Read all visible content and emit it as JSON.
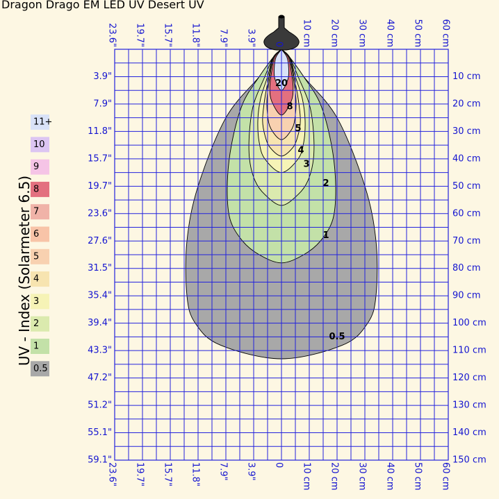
{
  "chart_data": {
    "type": "contour",
    "title": "Dragon Drago EM LED UV Desert UV",
    "ylabel": "UV - Index (Solarmeter 6.5)",
    "x_cm_range": [
      -60,
      60
    ],
    "y_cm_range": [
      0,
      150
    ],
    "grid": true,
    "top_tick_labels": [
      "23.6\"",
      "19.7\"",
      "15.7\"",
      "11.8\"",
      "7.9\"",
      "3.9\"",
      "0",
      "10 cm",
      "20 cm",
      "30 cm",
      "40 cm",
      "50 cm",
      "60 cm"
    ],
    "bottom_tick_labels": [
      "23.6\"",
      "19.7\"",
      "15.7\"",
      "11.8\"",
      "7.9\"",
      "3.9\"",
      "0",
      "10 cm",
      "20 cm",
      "30 cm",
      "40 cm",
      "50 cm",
      "60 cm"
    ],
    "left_tick_labels": [
      "3.9\"",
      "7.9\"",
      "11.8\"",
      "15.7\"",
      "19.7\"",
      "23.6\"",
      "27.6\"",
      "31.5\"",
      "35.4\"",
      "39.4\"",
      "43.3\"",
      "47.2\"",
      "51.2\"",
      "55.1\"",
      "59.1\""
    ],
    "right_tick_labels": [
      "10 cm",
      "20 cm",
      "30 cm",
      "40 cm",
      "50 cm",
      "60 cm",
      "70 cm",
      "80 cm",
      "90 cm",
      "100 cm",
      "110 cm",
      "120 cm",
      "130 cm",
      "140 cm",
      "150 cm"
    ],
    "legend": [
      {
        "label": "11+",
        "color": "#d9e2f7"
      },
      {
        "label": "10",
        "color": "#dcc5f2"
      },
      {
        "label": "9",
        "color": "#f5c4e6"
      },
      {
        "label": "8",
        "color": "#e3707f"
      },
      {
        "label": "7",
        "color": "#f0b3a8"
      },
      {
        "label": "6",
        "color": "#f8c4a8"
      },
      {
        "label": "5",
        "color": "#f8d1b0"
      },
      {
        "label": "4",
        "color": "#f7e4b0"
      },
      {
        "label": "3",
        "color": "#f6f3b6"
      },
      {
        "label": "2",
        "color": "#dbeaae"
      },
      {
        "label": "1",
        "color": "#c3e1a8"
      },
      {
        "label": "0.5",
        "color": "#a8a8a8"
      }
    ],
    "contours": [
      {
        "label": "0.5",
        "color": "#a8a8a8",
        "depth_cm": 113,
        "label_pos_cm": [
          20,
          105
        ],
        "halfwidth_cm": [
          [
            0,
            0
          ],
          [
            3,
            3
          ],
          [
            10,
            8
          ],
          [
            25,
            20
          ],
          [
            50,
            30
          ],
          [
            70,
            34
          ],
          [
            90,
            34
          ],
          [
            100,
            31
          ],
          [
            108,
            22
          ],
          [
            113,
            0
          ]
        ]
      },
      {
        "label": "1",
        "color": "#c3e1a8",
        "depth_cm": 78,
        "label_pos_cm": [
          16,
          68
        ],
        "halfwidth_cm": [
          [
            0,
            0
          ],
          [
            3,
            3
          ],
          [
            10,
            8
          ],
          [
            20,
            14
          ],
          [
            35,
            18
          ],
          [
            50,
            19.5
          ],
          [
            62,
            18.5
          ],
          [
            70,
            14
          ],
          [
            75,
            8
          ],
          [
            78,
            0
          ]
        ]
      },
      {
        "label": "2",
        "color": "#dbeaae",
        "depth_cm": 57,
        "label_pos_cm": [
          16,
          49
        ],
        "halfwidth_cm": [
          [
            0,
            0
          ],
          [
            3,
            3
          ],
          [
            10,
            6
          ],
          [
            20,
            10
          ],
          [
            30,
            11.5
          ],
          [
            40,
            11.5
          ],
          [
            48,
            9.5
          ],
          [
            53,
            6
          ],
          [
            57,
            0
          ]
        ]
      },
      {
        "label": "3",
        "color": "#f6f3b6",
        "depth_cm": 45,
        "label_pos_cm": [
          9,
          42
        ],
        "halfwidth_cm": [
          [
            0,
            0
          ],
          [
            3,
            3
          ],
          [
            10,
            5
          ],
          [
            18,
            7.5
          ],
          [
            26,
            8.5
          ],
          [
            34,
            8
          ],
          [
            40,
            6
          ],
          [
            45,
            0
          ]
        ]
      },
      {
        "label": "4",
        "color": "#f7e4b0",
        "depth_cm": 39,
        "label_pos_cm": [
          7,
          37
        ],
        "halfwidth_cm": [
          [
            0,
            0
          ],
          [
            3,
            3
          ],
          [
            10,
            4.5
          ],
          [
            18,
            6
          ],
          [
            26,
            6.8
          ],
          [
            32,
            5.8
          ],
          [
            36,
            4
          ],
          [
            39,
            0
          ]
        ]
      },
      {
        "label": "5",
        "color": "#f8d1b0",
        "depth_cm": 33,
        "label_pos_cm": [
          6,
          29
        ],
        "halfwidth_cm": [
          [
            0,
            0
          ],
          [
            3,
            2.8
          ],
          [
            10,
            4.2
          ],
          [
            18,
            5.2
          ],
          [
            24,
            5
          ],
          [
            29,
            3.8
          ],
          [
            33,
            0
          ]
        ]
      },
      {
        "label": "8",
        "color": "#e3707f",
        "depth_cm": 24,
        "label_pos_cm": [
          3,
          21
        ],
        "halfwidth_cm": [
          [
            0,
            0
          ],
          [
            3,
            2.5
          ],
          [
            8,
            3.5
          ],
          [
            14,
            4.2
          ],
          [
            19,
            3.5
          ],
          [
            24,
            0
          ]
        ]
      },
      {
        "label": "20",
        "color": "#d9e2f7",
        "depth_cm": 15,
        "label_pos_cm": [
          0,
          12.5
        ],
        "halfwidth_cm": [
          [
            0,
            0
          ],
          [
            3,
            2
          ],
          [
            7,
            2.6
          ],
          [
            11,
            2.3
          ],
          [
            15,
            0
          ]
        ]
      }
    ]
  }
}
